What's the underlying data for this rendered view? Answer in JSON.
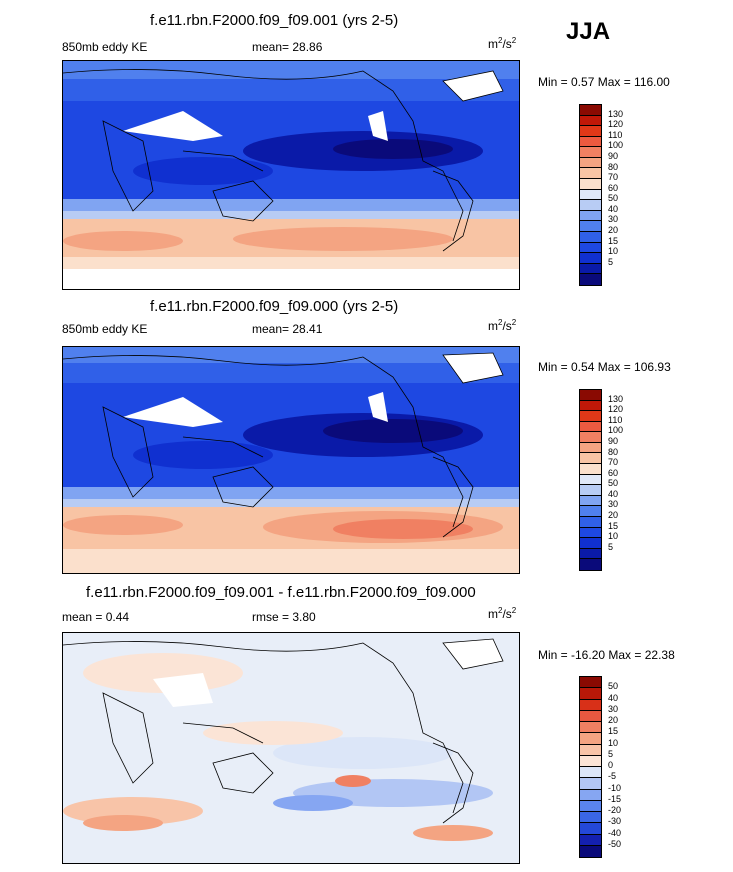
{
  "season": "JJA",
  "units_base": "m",
  "units_exp": "2",
  "units_sep": "/s",
  "units_exp2": "2",
  "panels": [
    {
      "title": "f.e11.rbn.F2000.f09_f09.001 (yrs 2-5)",
      "left_label": "850mb eddy KE",
      "center_label": "mean=  28.86",
      "minmax": "Min =   0.57 Max = 116.00",
      "ticks": [
        "130",
        "120",
        "110",
        "100",
        "90",
        "80",
        "70",
        "60",
        "50",
        "40",
        "30",
        "20",
        "15",
        "10",
        "5"
      ]
    },
    {
      "title": "f.e11.rbn.F2000.f09_f09.000 (yrs 2-5)",
      "left_label": "850mb eddy KE",
      "center_label": "mean=  28.41",
      "minmax": "Min =   0.54 Max = 106.93",
      "ticks": [
        "130",
        "120",
        "110",
        "100",
        "90",
        "80",
        "70",
        "60",
        "50",
        "40",
        "30",
        "20",
        "15",
        "10",
        "5"
      ]
    },
    {
      "title": "f.e11.rbn.F2000.f09_f09.001 - f.e11.rbn.F2000.f09_f09.000",
      "left_label": "mean =   0.44",
      "center_label": "rmse =   3.80",
      "minmax": "Min = -16.20 Max =  22.38",
      "ticks": [
        "50",
        "40",
        "30",
        "20",
        "15",
        "10",
        "5",
        "0",
        "-5",
        "-10",
        "-15",
        "-20",
        "-30",
        "-40",
        "-50"
      ]
    }
  ],
  "colors": {
    "abs_scale": [
      "#0a0a7a",
      "#0a1aa8",
      "#1030d0",
      "#1e48e2",
      "#3060e8",
      "#5080ee",
      "#80a4f2",
      "#b8ccf4",
      "#e0e8f8",
      "#fbe0cc",
      "#f8c4a4",
      "#f4a482",
      "#f08062",
      "#ec5a40",
      "#e03818",
      "#c01808",
      "#8a0a02"
    ],
    "diff_scale": [
      "#0a0a7a",
      "#1420b0",
      "#2448d8",
      "#3a66e6",
      "#5a84ee",
      "#86a6f2",
      "#b2c6f4",
      "#dce6f8",
      "#fbe4d6",
      "#f8c4a8",
      "#f4a482",
      "#f08062",
      "#e85840",
      "#d83018",
      "#b81808",
      "#8a0a02"
    ]
  }
}
